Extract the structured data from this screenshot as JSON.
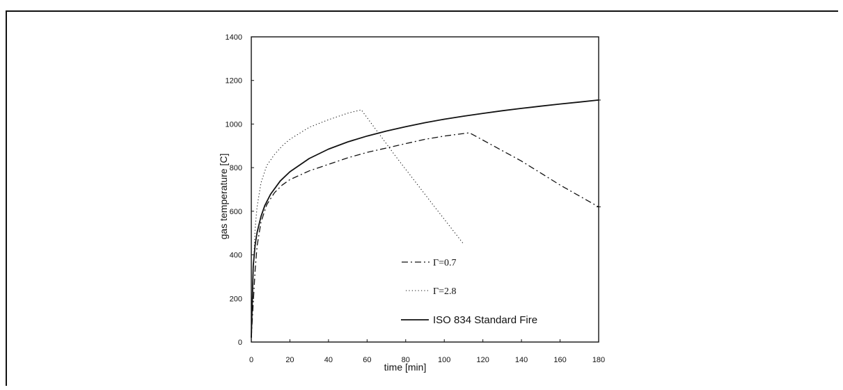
{
  "chart_data": {
    "type": "line",
    "xlabel": "time [min]",
    "ylabel": "gas temperature [C]",
    "xlim": [
      0,
      180
    ],
    "ylim": [
      0,
      1400
    ],
    "xticks": [
      0,
      20,
      40,
      60,
      80,
      100,
      120,
      140,
      160,
      180
    ],
    "yticks": [
      0,
      200,
      400,
      600,
      800,
      1000,
      1200,
      1400
    ],
    "grid": false,
    "legend_placement": "bottom-right",
    "series": [
      {
        "name": "Γ=0.7",
        "style": "dash-dot",
        "color": "#111111",
        "x": [
          0,
          1,
          2,
          3,
          5,
          8,
          12,
          16,
          20,
          30,
          40,
          50,
          60,
          70,
          80,
          90,
          100,
          113,
          140,
          160,
          180
        ],
        "y": [
          20,
          180,
          330,
          440,
          550,
          630,
          685,
          720,
          745,
          785,
          815,
          845,
          870,
          890,
          910,
          930,
          945,
          960,
          830,
          720,
          620
        ]
      },
      {
        "name": "Γ=2.8",
        "style": "dotted",
        "color": "#111111",
        "x": [
          0,
          1,
          2,
          3,
          5,
          8,
          12,
          16,
          20,
          30,
          40,
          50,
          57,
          75,
          95,
          110
        ],
        "y": [
          20,
          320,
          520,
          620,
          730,
          810,
          860,
          900,
          930,
          985,
          1020,
          1050,
          1065,
          850,
          620,
          450
        ]
      },
      {
        "name": "ISO 834 Standard Fire",
        "style": "solid",
        "color": "#111111",
        "x": [
          0,
          1,
          2,
          3,
          5,
          7,
          10,
          15,
          20,
          30,
          40,
          50,
          60,
          70,
          80,
          90,
          100,
          110,
          120,
          130,
          140,
          150,
          160,
          170,
          180
        ],
        "y": [
          20,
          349,
          445,
          502,
          576,
          626,
          678,
          739,
          781,
          842,
          885,
          918,
          945,
          968,
          988,
          1006,
          1022,
          1036,
          1049,
          1061,
          1072,
          1082,
          1092,
          1101,
          1110
        ]
      }
    ]
  }
}
